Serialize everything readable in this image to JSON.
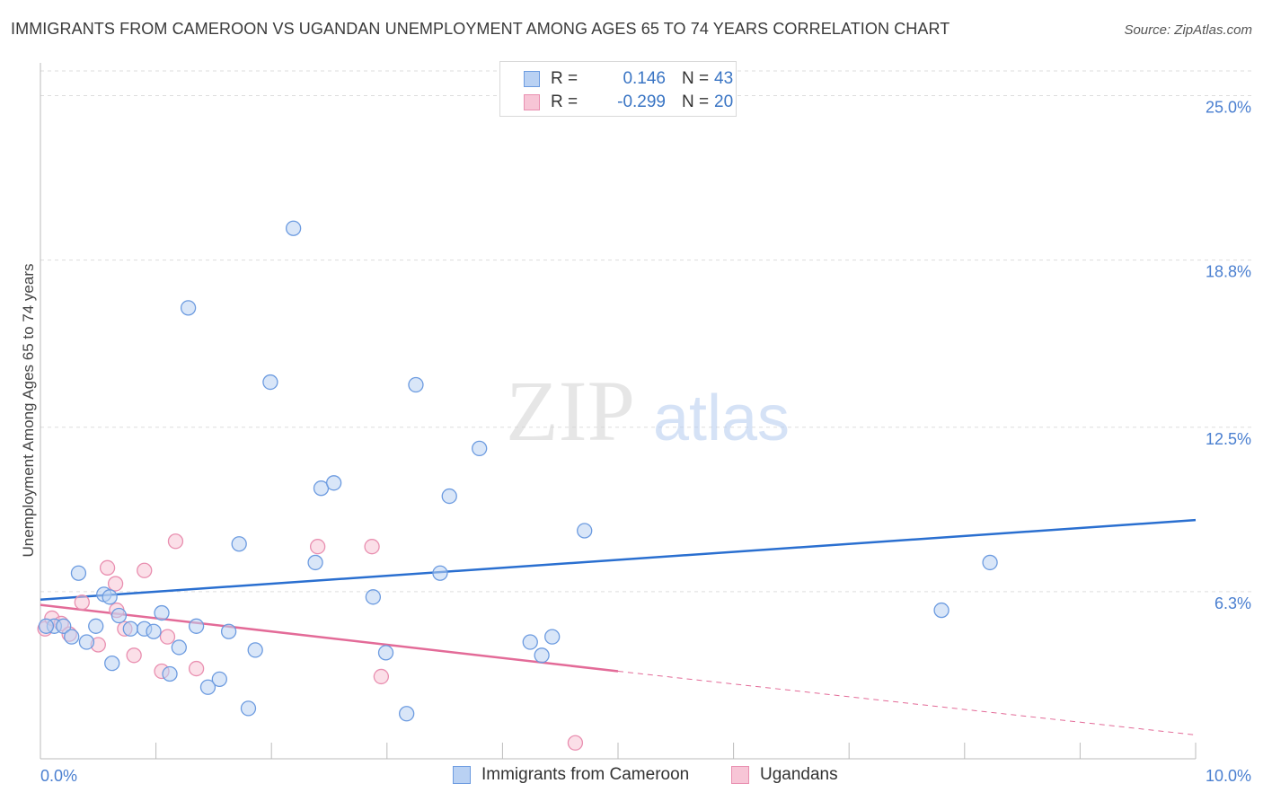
{
  "header": {
    "title": "IMMIGRANTS FROM CAMEROON VS UGANDAN UNEMPLOYMENT AMONG AGES 65 TO 74 YEARS CORRELATION CHART",
    "source": "Source: ZipAtlas.com"
  },
  "watermark": {
    "zip": "ZIP",
    "atlas": "atlas"
  },
  "legend": {
    "rows": [
      {
        "r_label": "R =",
        "r_value": "0.146",
        "n_label": "N =",
        "n_value": "43"
      },
      {
        "r_label": "R =",
        "r_value": "-0.299",
        "n_label": "N =",
        "n_value": "20"
      }
    ]
  },
  "bottom_legend": {
    "items": [
      {
        "label": "Immigrants from Cameroon"
      },
      {
        "label": "Ugandans"
      }
    ]
  },
  "colors": {
    "blue_fill": "#b9d1f3",
    "blue_stroke": "#6c9be0",
    "blue_line": "#2a6fd0",
    "pink_fill": "#f7c5d6",
    "pink_stroke": "#e98fb0",
    "pink_line": "#e36b98",
    "grid": "#dddddd",
    "tick_text": "#4a7fd0"
  },
  "chart_data": {
    "type": "scatter",
    "title": "IMMIGRANTS FROM CAMEROON VS UGANDAN UNEMPLOYMENT AMONG AGES 65 TO 74 YEARS CORRELATION CHART",
    "xlabel": "",
    "ylabel": "Unemployment Among Ages 65 to 74 years",
    "xlim": [
      0,
      10
    ],
    "ylim": [
      0,
      26
    ],
    "x_tick_labels": [
      "0.0%",
      "10.0%"
    ],
    "x_ticks": [
      0,
      10
    ],
    "y_ticks": [
      6.3,
      12.5,
      18.8,
      25.0
    ],
    "y_tick_labels": [
      "6.3%",
      "12.5%",
      "18.8%",
      "25.0%"
    ],
    "grid": true,
    "legend_position": "top-center",
    "series": [
      {
        "name": "Immigrants from Cameroon",
        "r": 0.146,
        "n": 43,
        "points": [
          [
            0.12,
            5.0
          ],
          [
            0.2,
            5.0
          ],
          [
            0.27,
            4.6
          ],
          [
            0.33,
            7.0
          ],
          [
            0.4,
            4.4
          ],
          [
            0.48,
            5.0
          ],
          [
            0.55,
            6.2
          ],
          [
            0.6,
            6.1
          ],
          [
            0.62,
            3.6
          ],
          [
            0.68,
            5.4
          ],
          [
            0.78,
            4.9
          ],
          [
            0.9,
            4.9
          ],
          [
            0.98,
            4.8
          ],
          [
            1.05,
            5.5
          ],
          [
            1.12,
            3.2
          ],
          [
            1.2,
            4.2
          ],
          [
            1.28,
            17.0
          ],
          [
            1.35,
            5.0
          ],
          [
            1.45,
            2.7
          ],
          [
            1.55,
            3.0
          ],
          [
            1.63,
            4.8
          ],
          [
            1.72,
            8.1
          ],
          [
            1.8,
            1.9
          ],
          [
            1.86,
            4.1
          ],
          [
            1.99,
            14.2
          ],
          [
            2.19,
            20.0
          ],
          [
            2.38,
            7.4
          ],
          [
            2.43,
            10.2
          ],
          [
            2.54,
            10.4
          ],
          [
            2.88,
            6.1
          ],
          [
            2.99,
            4.0
          ],
          [
            3.17,
            1.7
          ],
          [
            3.25,
            14.1
          ],
          [
            3.46,
            7.0
          ],
          [
            3.54,
            9.9
          ],
          [
            3.8,
            11.7
          ],
          [
            4.24,
            4.4
          ],
          [
            4.34,
            3.9
          ],
          [
            4.43,
            4.6
          ],
          [
            4.71,
            8.6
          ],
          [
            7.8,
            5.6
          ],
          [
            8.22,
            7.4
          ],
          [
            0.05,
            5.0
          ]
        ]
      },
      {
        "name": "Ugandans",
        "r": -0.299,
        "n": 20,
        "points": [
          [
            0.04,
            4.9
          ],
          [
            0.1,
            5.3
          ],
          [
            0.18,
            5.1
          ],
          [
            0.25,
            4.7
          ],
          [
            0.36,
            5.9
          ],
          [
            0.5,
            4.3
          ],
          [
            0.58,
            7.2
          ],
          [
            0.65,
            6.6
          ],
          [
            0.66,
            5.6
          ],
          [
            0.73,
            4.9
          ],
          [
            0.81,
            3.9
          ],
          [
            0.9,
            7.1
          ],
          [
            1.05,
            3.3
          ],
          [
            1.1,
            4.6
          ],
          [
            1.17,
            8.2
          ],
          [
            1.35,
            3.4
          ],
          [
            2.4,
            8.0
          ],
          [
            2.87,
            8.0
          ],
          [
            2.95,
            3.1
          ],
          [
            4.63,
            0.6
          ]
        ]
      }
    ],
    "trend_lines": [
      {
        "series": "Immigrants from Cameroon",
        "x": [
          0,
          10
        ],
        "y": [
          6.0,
          9.0
        ],
        "style": "solid"
      },
      {
        "series": "Ugandans",
        "x": [
          0,
          5
        ],
        "y": [
          5.8,
          3.3
        ],
        "style": "solid"
      },
      {
        "series": "Ugandans",
        "x": [
          5,
          10
        ],
        "y": [
          3.3,
          0.9
        ],
        "style": "dashed"
      }
    ]
  }
}
